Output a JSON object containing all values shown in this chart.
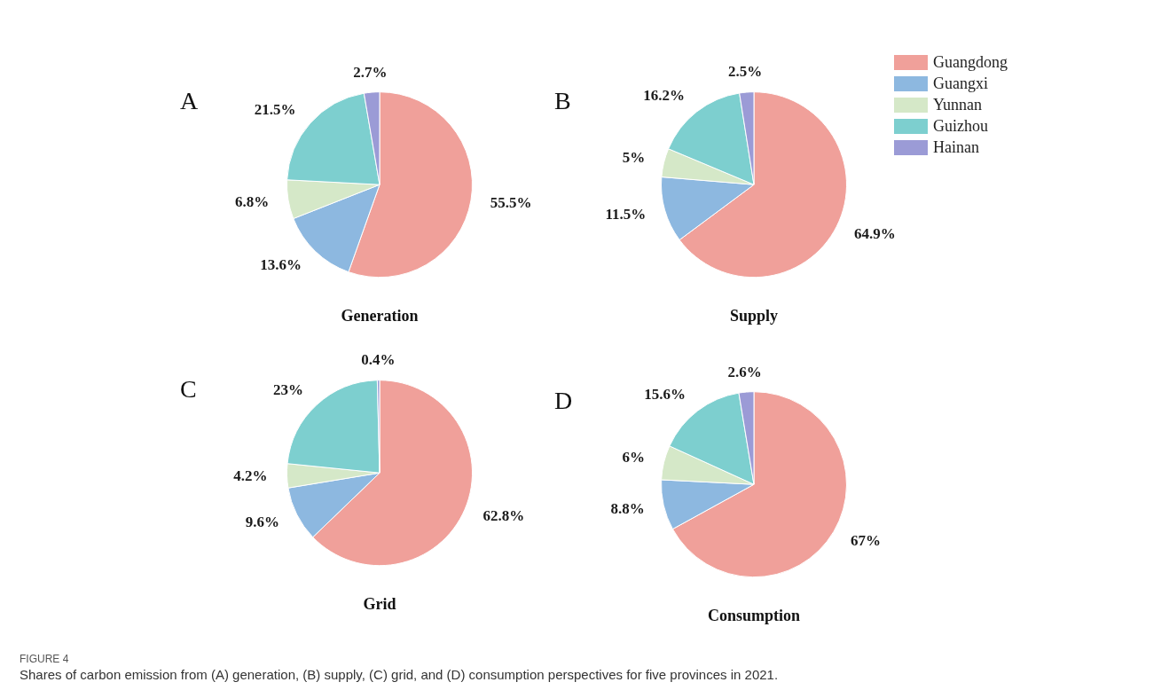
{
  "chart_data": [
    {
      "type": "pie",
      "title": "Generation",
      "categories": [
        null,
        null,
        null,
        null,
        null
      ],
      "values": [
        55.5,
        13.6,
        6.8,
        21.5,
        2.7
      ],
      "value_labels": [
        "55.5%",
        "13.6%",
        "6.8%",
        "21.5%",
        "2.7%"
      ],
      "colors": [
        "#f0a09a",
        "#8db8e0",
        "#d5e8c8",
        "#7dcfcf",
        "#9b9bd6"
      ],
      "annotations": [
        "A"
      ]
    },
    {
      "type": "pie",
      "title": "Supply",
      "categories": [
        "Guangdong",
        "Guangxi",
        "Yunnan",
        "Guizhou",
        "Hainan"
      ],
      "values": [
        64.9,
        11.5,
        5,
        16.2,
        2.5
      ],
      "value_labels": [
        "64.9%",
        "11.5%",
        "5%",
        "16.2%",
        "2.5%"
      ],
      "colors": [
        "#f0a09a",
        "#8db8e0",
        "#d5e8c8",
        "#7dcfcf",
        "#9b9bd6"
      ],
      "legend": "top right",
      "annotations": [
        "B"
      ]
    },
    {
      "type": "pie",
      "title": "Grid",
      "categories": [
        null,
        null,
        null,
        null,
        null
      ],
      "values": [
        62.8,
        9.6,
        4.2,
        23,
        0.4
      ],
      "value_labels": [
        "62.8%",
        "9.6%",
        "4.2%",
        "23%",
        "0.4%"
      ],
      "colors": [
        "#f0a09a",
        "#8db8e0",
        "#d5e8c8",
        "#7dcfcf",
        "#9b9bd6"
      ],
      "annotations": [
        "C"
      ]
    },
    {
      "type": "pie",
      "title": "Consumption",
      "categories": [
        null,
        null,
        null,
        null,
        null
      ],
      "values": [
        67,
        8.8,
        6,
        15.6,
        2.6
      ],
      "value_labels": [
        "67%",
        "8.8%",
        "6%",
        "15.6%",
        "2.6%"
      ],
      "colors": [
        "#f0a09a",
        "#8db8e0",
        "#d5e8c8",
        "#7dcfcf",
        "#9b9bd6"
      ],
      "annotations": [
        "D",
        "FIGURE 4",
        "Shares of carbon emission from (A) generation, (B) supply, (C) grid, and (D) consumption perspectives for five provinces in 2021."
      ]
    }
  ]
}
